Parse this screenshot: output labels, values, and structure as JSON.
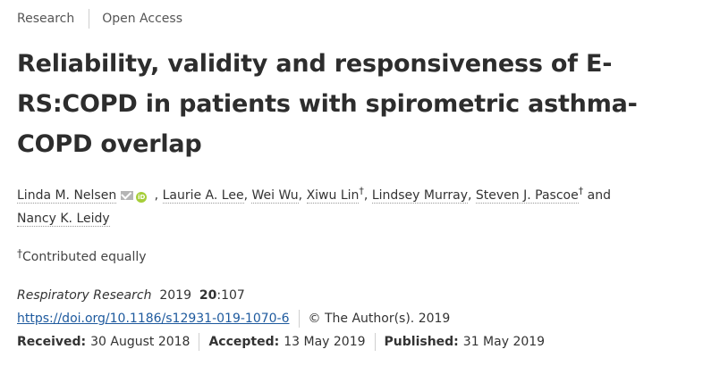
{
  "tags": {
    "type": "Research",
    "access": "Open Access"
  },
  "article": {
    "title": "Reliability, validity and responsiveness of E-RS:COPD in patients with spirometric asthma-COPD overlap",
    "authors": [
      {
        "name": "Linda M. Nelsen",
        "sep": " , "
      },
      {
        "name": "Laurie A. Lee",
        "sep": ", "
      },
      {
        "name": "Wei Wu",
        "sep": ", "
      },
      {
        "name": "Xiwu Lin",
        "sup": "†",
        "sep": ", "
      },
      {
        "name": "Lindsey Murray",
        "sep": ", "
      },
      {
        "name": "Steven J. Pascoe",
        "sup": "†",
        "sep": " and "
      },
      {
        "name": "Nancy K. Leidy",
        "sep": ""
      }
    ],
    "contribution_mark": "†",
    "contribution_note": "Contributed equally"
  },
  "meta": {
    "journal": "Respiratory Research",
    "year": "2019",
    "volume": "20",
    "article_no": ":107",
    "doi": "https://doi.org/10.1186/s12931-019-1070-6",
    "copyright": "© The Author(s). 2019",
    "received_label": "Received:",
    "received": "30 August 2018",
    "accepted_label": "Accepted:",
    "accepted": "13 May 2019",
    "published_label": "Published:",
    "published": "31 May 2019"
  }
}
